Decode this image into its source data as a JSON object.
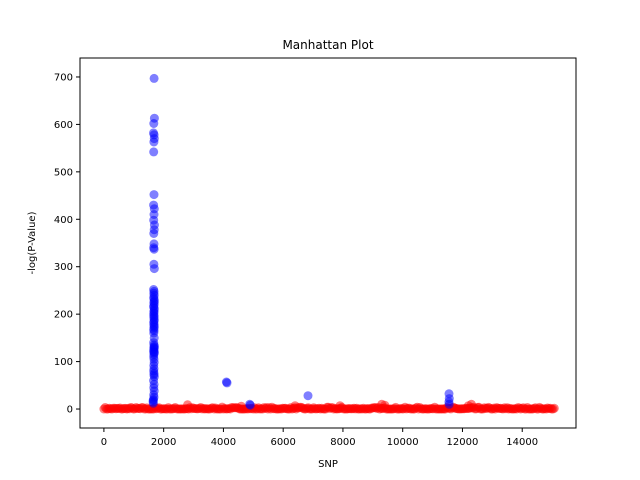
{
  "chart_data": {
    "type": "scatter",
    "title": "Manhattan Plot",
    "xlabel": "SNP",
    "ylabel": "-log(P-Value)",
    "xlim": [
      -800,
      15800
    ],
    "ylim": [
      -40,
      740
    ],
    "xticks": [
      0,
      2000,
      4000,
      6000,
      8000,
      10000,
      12000,
      14000
    ],
    "yticks": [
      0,
      100,
      200,
      300,
      400,
      500,
      600,
      700
    ],
    "grid": false,
    "marker": "circle",
    "marker_alpha": 0.5,
    "colors": {
      "significant": "#0000ff",
      "baseline": "#ff0000"
    },
    "significance_threshold": 2,
    "series": [
      {
        "color": "#0000ff",
        "x": [
          1680,
          1690,
          1670,
          1660,
          1680,
          1685,
          1672,
          1665,
          1678,
          1662,
          1688,
          1675,
          1668,
          1690,
          1683,
          1670,
          1676,
          1666,
          1681,
          1673,
          1687,
          1664,
          1679,
          1671,
          1684,
          1667,
          1677,
          1689,
          1669,
          1682,
          1674,
          1663,
          1686,
          1680,
          1672,
          1678,
          1665,
          1684,
          1670,
          1688,
          1676,
          1668,
          1681,
          1673,
          1686,
          1664,
          1679,
          1671,
          1683,
          1667,
          1677,
          1689,
          1669,
          1682,
          1674,
          1663,
          1687,
          1680,
          1672,
          1665,
          1678,
          1684,
          1670,
          1676,
          1668,
          1681,
          1673,
          1686,
          1664,
          1679,
          1671,
          1683,
          1667,
          1677,
          1660,
          1650,
          1645,
          1655,
          4100,
          4120,
          4880,
          4900,
          6830,
          11550,
          11560,
          11545,
          11555
        ],
        "y": [
          697,
          613,
          602,
          582,
          578,
          570,
          563,
          542,
          452,
          430,
          422,
          410,
          398,
          388,
          378,
          370,
          348,
          340,
          337,
          305,
          296,
          252,
          248,
          244,
          240,
          235,
          232,
          228,
          225,
          222,
          218,
          215,
          212,
          208,
          205,
          202,
          198,
          195,
          192,
          188,
          185,
          182,
          178,
          175,
          172,
          168,
          165,
          160,
          150,
          140,
          135,
          132,
          130,
          128,
          125,
          122,
          120,
          118,
          115,
          110,
          105,
          98,
          92,
          85,
          80,
          75,
          72,
          68,
          60,
          52,
          45,
          38,
          30,
          25,
          20,
          18,
          15,
          12,
          57,
          55,
          10,
          8,
          28,
          32,
          22,
          15,
          10
        ]
      }
    ],
    "baseline_band": {
      "color": "#ff0000",
      "x_range": [
        0,
        15100
      ],
      "y_range": [
        0,
        9
      ],
      "outliers": [
        [
          2800,
          9
        ],
        [
          9300,
          10
        ],
        [
          9400,
          8
        ],
        [
          12300,
          10
        ],
        [
          12200,
          7
        ],
        [
          6400,
          7
        ],
        [
          7900,
          7
        ],
        [
          4600,
          6
        ]
      ]
    }
  }
}
